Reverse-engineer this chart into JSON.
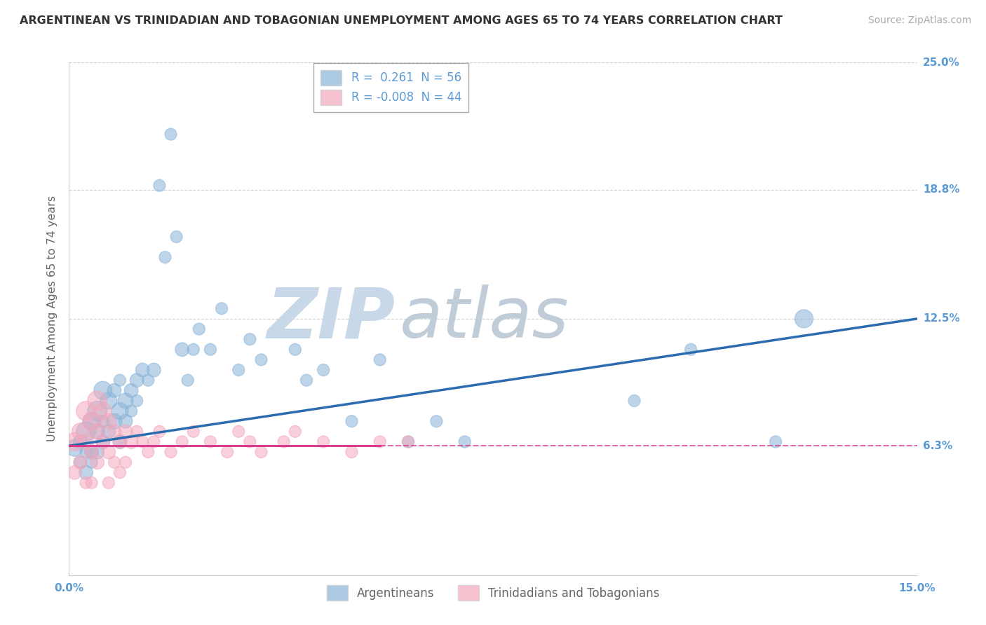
{
  "title": "ARGENTINEAN VS TRINIDADIAN AND TOBAGONIAN UNEMPLOYMENT AMONG AGES 65 TO 74 YEARS CORRELATION CHART",
  "source": "Source: ZipAtlas.com",
  "ylabel": "Unemployment Among Ages 65 to 74 years",
  "xlabel": "",
  "xlim": [
    0.0,
    0.15
  ],
  "ylim": [
    0.0,
    0.25
  ],
  "ytick_positions": [
    0.063,
    0.125,
    0.188,
    0.25
  ],
  "ytick_labels": [
    "6.3%",
    "12.5%",
    "18.8%",
    "25.0%"
  ],
  "legend_r_blue": " 0.261",
  "legend_n_blue": "56",
  "legend_r_pink": "-0.008",
  "legend_n_pink": "44",
  "blue_color": "#8ab4d8",
  "pink_color": "#f4a8bc",
  "blue_line_color": "#2b6cb0",
  "pink_line_color": "#d63384",
  "watermark_zip_color": "#c8d8e8",
  "watermark_atlas_color": "#c0ccd8",
  "grid_color": "#d0d0d0",
  "title_color": "#333333",
  "axis_label_color": "#666666",
  "tick_label_color": "#5b9bd5",
  "source_color": "#aaaaaa",
  "blue_scatter_x": [
    0.001,
    0.002,
    0.002,
    0.003,
    0.003,
    0.003,
    0.004,
    0.004,
    0.004,
    0.005,
    0.005,
    0.005,
    0.006,
    0.006,
    0.006,
    0.007,
    0.007,
    0.008,
    0.008,
    0.009,
    0.009,
    0.009,
    0.01,
    0.01,
    0.011,
    0.011,
    0.012,
    0.012,
    0.013,
    0.014,
    0.015,
    0.016,
    0.017,
    0.018,
    0.019,
    0.02,
    0.021,
    0.022,
    0.023,
    0.025,
    0.027,
    0.03,
    0.032,
    0.034,
    0.04,
    0.042,
    0.045,
    0.05,
    0.055,
    0.06,
    0.065,
    0.07,
    0.1,
    0.11,
    0.125,
    0.13
  ],
  "blue_scatter_y": [
    0.062,
    0.065,
    0.055,
    0.07,
    0.05,
    0.06,
    0.075,
    0.06,
    0.055,
    0.08,
    0.07,
    0.06,
    0.09,
    0.065,
    0.075,
    0.085,
    0.07,
    0.075,
    0.09,
    0.08,
    0.065,
    0.095,
    0.085,
    0.075,
    0.09,
    0.08,
    0.095,
    0.085,
    0.1,
    0.095,
    0.1,
    0.19,
    0.155,
    0.215,
    0.165,
    0.11,
    0.095,
    0.11,
    0.12,
    0.11,
    0.13,
    0.1,
    0.115,
    0.105,
    0.11,
    0.095,
    0.1,
    0.075,
    0.105,
    0.065,
    0.075,
    0.065,
    0.085,
    0.11,
    0.065,
    0.125
  ],
  "blue_scatter_sizes": [
    300,
    200,
    150,
    400,
    200,
    150,
    300,
    200,
    150,
    400,
    250,
    200,
    350,
    200,
    150,
    300,
    200,
    250,
    200,
    300,
    200,
    150,
    250,
    200,
    200,
    150,
    200,
    150,
    200,
    150,
    200,
    150,
    150,
    150,
    150,
    200,
    150,
    150,
    150,
    150,
    150,
    150,
    150,
    150,
    150,
    150,
    150,
    150,
    150,
    150,
    150,
    150,
    150,
    150,
    150,
    350
  ],
  "pink_scatter_x": [
    0.001,
    0.001,
    0.002,
    0.002,
    0.003,
    0.003,
    0.003,
    0.004,
    0.004,
    0.004,
    0.005,
    0.005,
    0.005,
    0.006,
    0.006,
    0.007,
    0.007,
    0.007,
    0.008,
    0.008,
    0.009,
    0.009,
    0.01,
    0.01,
    0.011,
    0.012,
    0.013,
    0.014,
    0.015,
    0.016,
    0.018,
    0.02,
    0.022,
    0.025,
    0.028,
    0.03,
    0.032,
    0.034,
    0.038,
    0.04,
    0.045,
    0.05,
    0.055,
    0.06
  ],
  "pink_scatter_y": [
    0.065,
    0.05,
    0.07,
    0.055,
    0.08,
    0.065,
    0.045,
    0.075,
    0.06,
    0.045,
    0.085,
    0.07,
    0.055,
    0.08,
    0.065,
    0.075,
    0.06,
    0.045,
    0.07,
    0.055,
    0.065,
    0.05,
    0.07,
    0.055,
    0.065,
    0.07,
    0.065,
    0.06,
    0.065,
    0.07,
    0.06,
    0.065,
    0.07,
    0.065,
    0.06,
    0.07,
    0.065,
    0.06,
    0.065,
    0.07,
    0.065,
    0.06,
    0.065,
    0.065
  ],
  "pink_scatter_sizes": [
    350,
    200,
    300,
    200,
    400,
    250,
    150,
    350,
    200,
    150,
    400,
    250,
    200,
    300,
    200,
    250,
    200,
    150,
    200,
    150,
    200,
    150,
    200,
    150,
    200,
    150,
    150,
    150,
    150,
    150,
    150,
    150,
    150,
    150,
    150,
    150,
    150,
    150,
    150,
    150,
    150,
    150,
    150,
    150
  ],
  "blue_line_x": [
    0.0,
    0.15
  ],
  "blue_line_y": [
    0.063,
    0.125
  ],
  "pink_line_x": [
    0.0,
    0.055
  ],
  "pink_line_y": [
    0.063,
    0.063
  ]
}
